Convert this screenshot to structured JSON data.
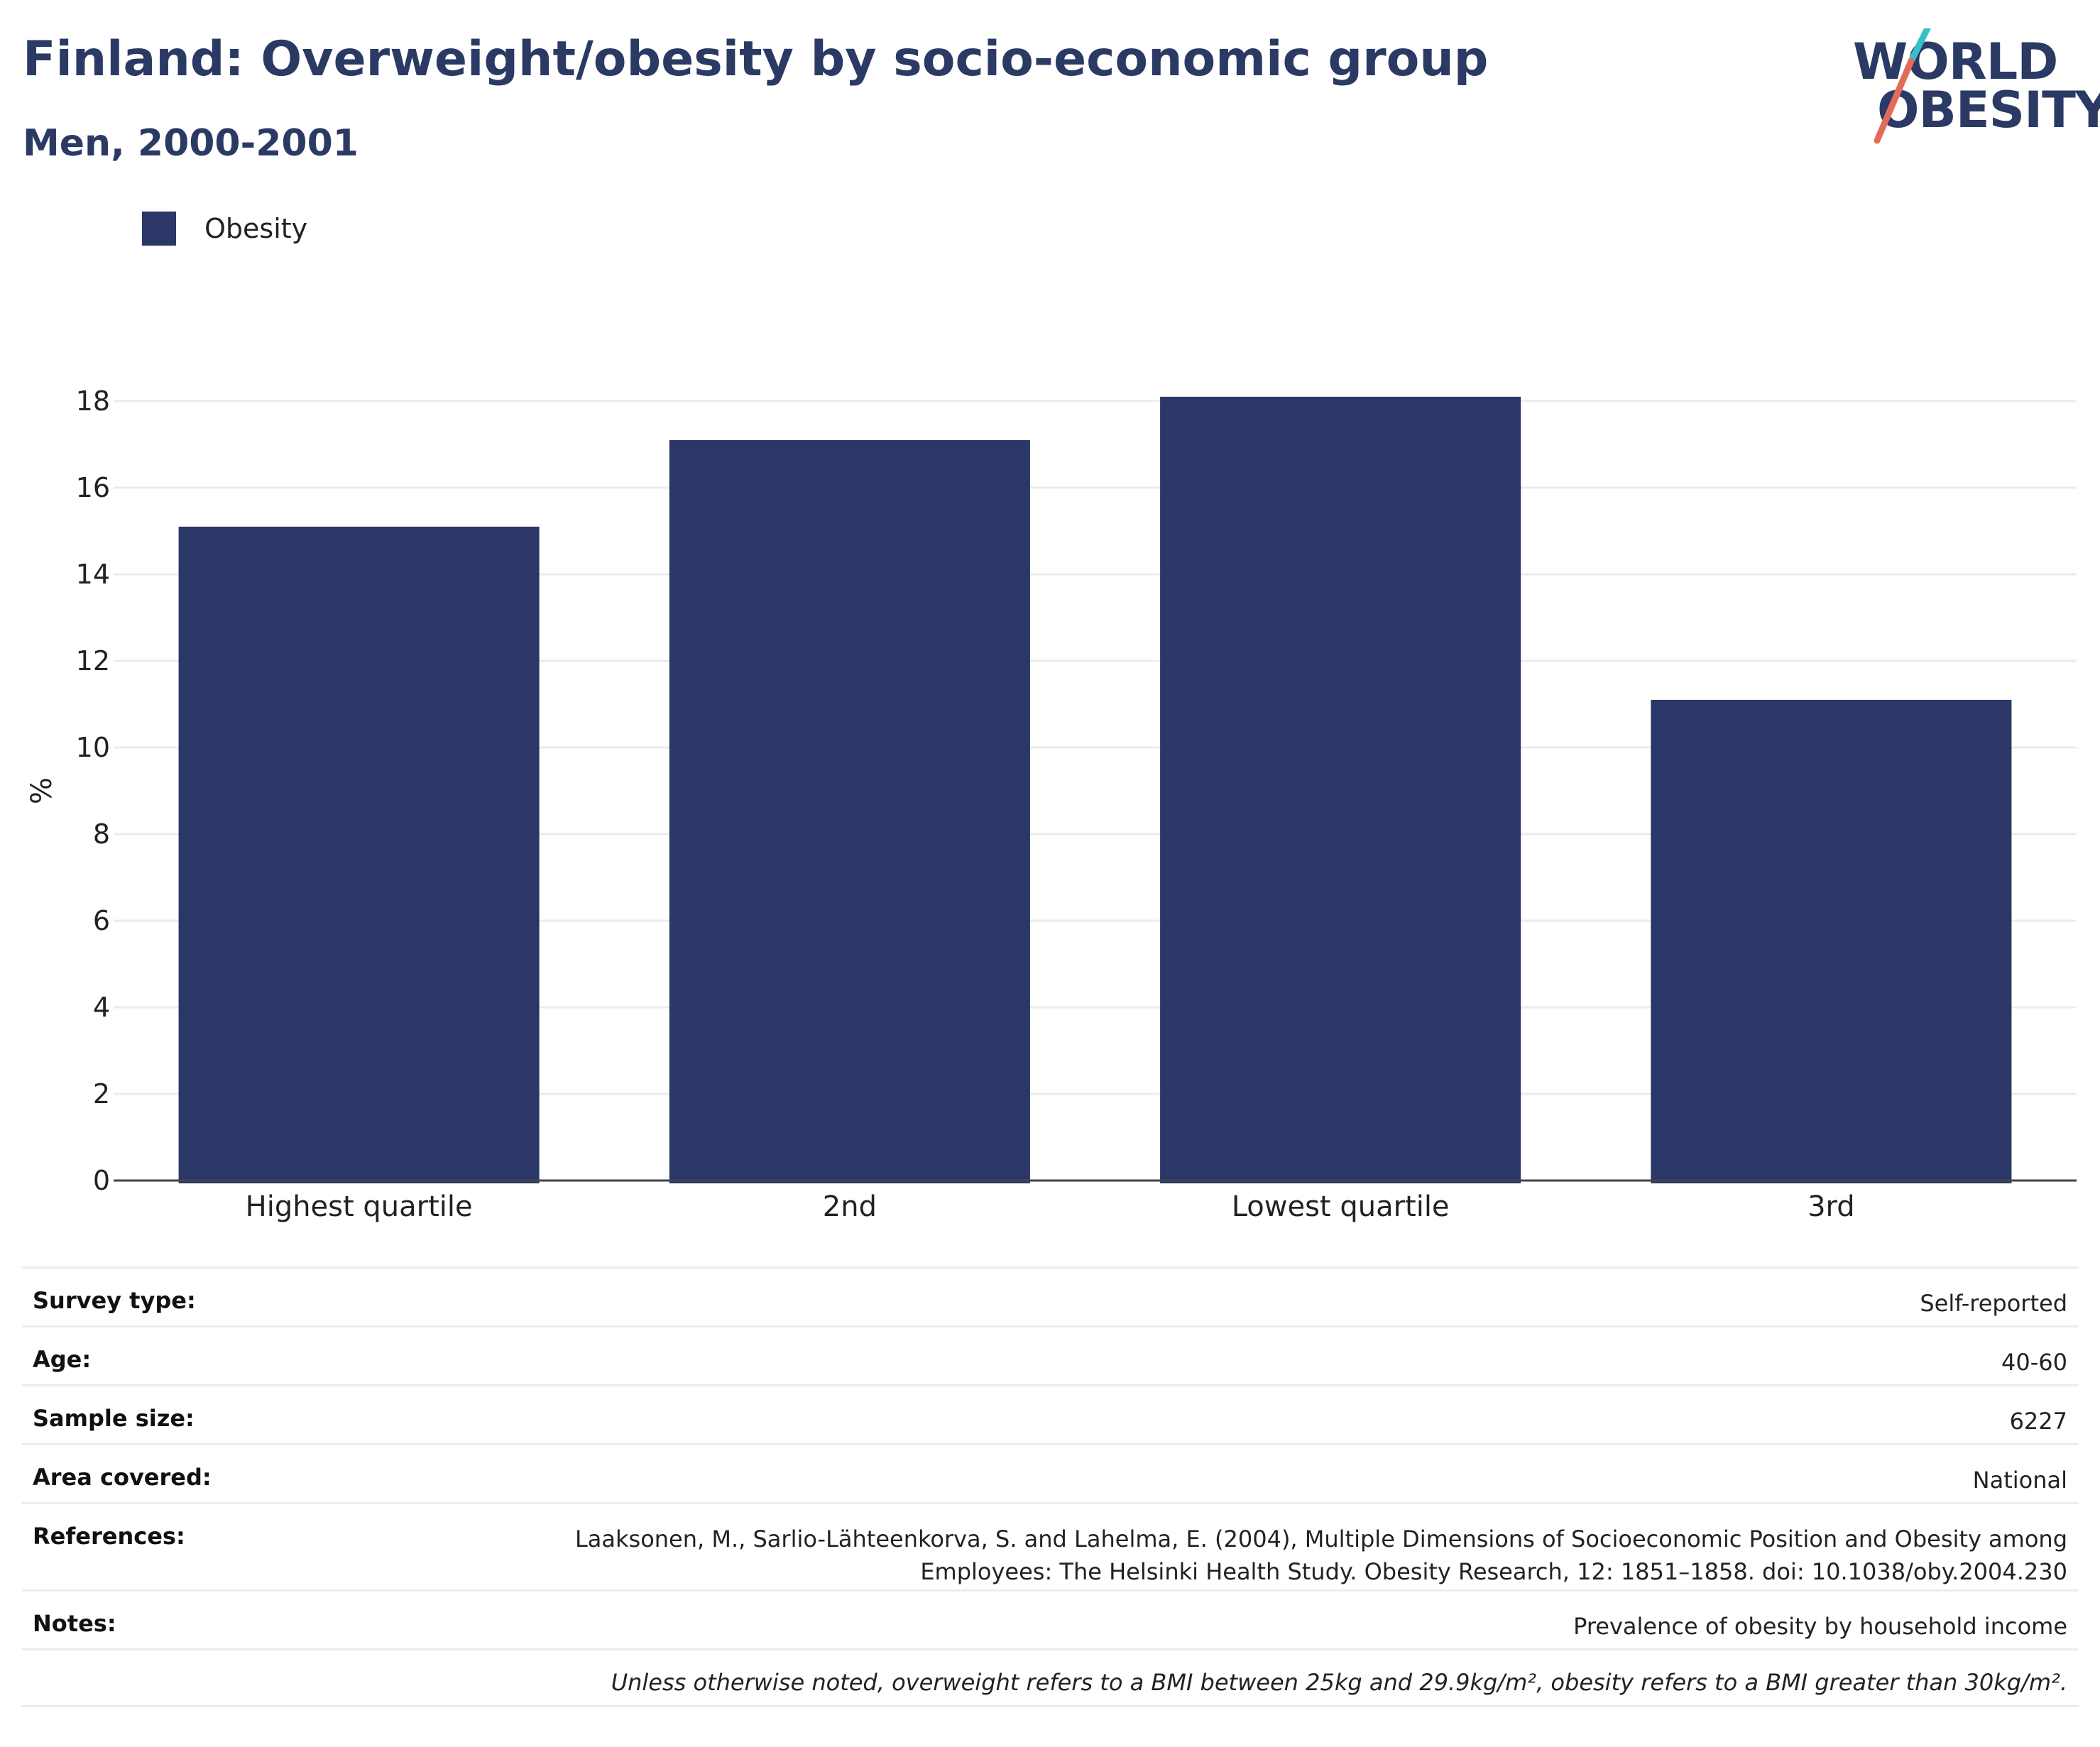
{
  "header": {
    "title": "Finland: Overweight/obesity by socio-economic group",
    "subtitle": "Men, 2000-2001"
  },
  "logo": {
    "line1": "WORLD",
    "line2": "OBESITY",
    "colors": {
      "text": "#2b3a64",
      "slash_top": "#3bbfc4",
      "slash_bottom": "#e36b5b"
    }
  },
  "legend": {
    "label": "Obesity",
    "color": "#2b3766"
  },
  "chart_data": {
    "type": "bar",
    "categories": [
      "Highest quartile",
      "2nd",
      "Lowest quartile",
      "3rd"
    ],
    "series": [
      {
        "name": "Obesity",
        "values": [
          15.1,
          17.1,
          18.1,
          11.1
        ],
        "color": "#2b3766"
      }
    ],
    "ylabel": "%",
    "xlabel": "",
    "ylim": [
      0,
      18
    ],
    "yticks": [
      0,
      2,
      4,
      6,
      8,
      10,
      12,
      14,
      16,
      18
    ],
    "grid": true,
    "legend_position": "top-left"
  },
  "meta": {
    "rows": [
      {
        "key": "Survey type:",
        "value": [
          "Self-reported"
        ]
      },
      {
        "key": "Age:",
        "value": [
          "40-60"
        ]
      },
      {
        "key": "Sample size:",
        "value": [
          "6227"
        ]
      },
      {
        "key": "Area covered:",
        "value": [
          "National"
        ]
      },
      {
        "key": "References:",
        "value": [
          "Laaksonen, M., Sarlio-Lähteenkorva, S. and Lahelma, E. (2004), Multiple Dimensions of Socioeconomic Position and Obesity among",
          "Employees: The Helsinki Health Study. Obesity Research, 12: 1851–1858. doi: 10.1038/oby.2004.230"
        ]
      },
      {
        "key": "Notes:",
        "value": [
          "Prevalence of obesity by household income"
        ]
      }
    ],
    "footnote": "Unless otherwise noted, overweight refers to a BMI between 25kg and 29.9kg/m², obesity refers to a BMI greater than 30kg/m²."
  }
}
